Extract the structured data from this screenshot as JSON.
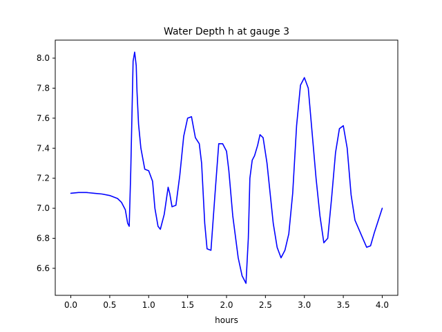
{
  "chart_data": {
    "type": "line",
    "title": "Water Depth h at gauge 3",
    "xlabel": "hours",
    "ylabel": "",
    "xlim": [
      -0.2,
      4.2
    ],
    "ylim": [
      6.42,
      8.12
    ],
    "xticks": [
      0.0,
      0.5,
      1.0,
      1.5,
      2.0,
      2.5,
      3.0,
      3.5,
      4.0
    ],
    "xtick_labels": [
      "0.0",
      "0.5",
      "1.0",
      "1.5",
      "2.0",
      "2.5",
      "3.0",
      "3.5",
      "4.0"
    ],
    "yticks": [
      6.6,
      6.8,
      7.0,
      7.2,
      7.4,
      7.6,
      7.8,
      8.0
    ],
    "ytick_labels": [
      "6.6",
      "6.8",
      "7.0",
      "7.2",
      "7.4",
      "7.6",
      "7.8",
      "8.0"
    ],
    "grid": false,
    "series": [
      {
        "color": "#0000ff",
        "x": [
          0.0,
          0.1,
          0.2,
          0.3,
          0.4,
          0.5,
          0.6,
          0.65,
          0.7,
          0.73,
          0.75,
          0.77,
          0.8,
          0.82,
          0.84,
          0.85,
          0.87,
          0.9,
          0.95,
          1.0,
          1.05,
          1.08,
          1.12,
          1.15,
          1.2,
          1.25,
          1.27,
          1.3,
          1.35,
          1.4,
          1.45,
          1.5,
          1.55,
          1.6,
          1.65,
          1.68,
          1.72,
          1.75,
          1.8,
          1.85,
          1.9,
          1.95,
          2.0,
          2.03,
          2.08,
          2.15,
          2.2,
          2.25,
          2.28,
          2.3,
          2.33,
          2.36,
          2.4,
          2.43,
          2.47,
          2.52,
          2.6,
          2.65,
          2.7,
          2.75,
          2.8,
          2.85,
          2.9,
          2.95,
          3.0,
          3.05,
          3.1,
          3.15,
          3.2,
          3.25,
          3.3,
          3.35,
          3.4,
          3.45,
          3.5,
          3.55,
          3.6,
          3.65,
          3.7,
          3.75,
          3.8,
          3.85,
          3.9,
          3.95,
          4.0
        ],
        "y": [
          7.1,
          7.105,
          7.105,
          7.1,
          7.095,
          7.085,
          7.065,
          7.04,
          6.99,
          6.9,
          6.88,
          7.25,
          7.98,
          8.04,
          7.95,
          7.78,
          7.56,
          7.4,
          7.26,
          7.25,
          7.18,
          7.0,
          6.88,
          6.86,
          6.96,
          7.14,
          7.1,
          7.01,
          7.02,
          7.22,
          7.48,
          7.6,
          7.61,
          7.47,
          7.43,
          7.3,
          6.9,
          6.73,
          6.72,
          7.08,
          7.43,
          7.43,
          7.38,
          7.25,
          6.95,
          6.67,
          6.55,
          6.5,
          6.8,
          7.2,
          7.32,
          7.35,
          7.42,
          7.49,
          7.47,
          7.3,
          6.9,
          6.74,
          6.67,
          6.72,
          6.83,
          7.1,
          7.55,
          7.82,
          7.87,
          7.8,
          7.5,
          7.2,
          6.95,
          6.77,
          6.8,
          7.07,
          7.37,
          7.53,
          7.55,
          7.4,
          7.09,
          6.92,
          6.86,
          6.8,
          6.74,
          6.75,
          6.84,
          6.92,
          7.0
        ]
      }
    ]
  }
}
